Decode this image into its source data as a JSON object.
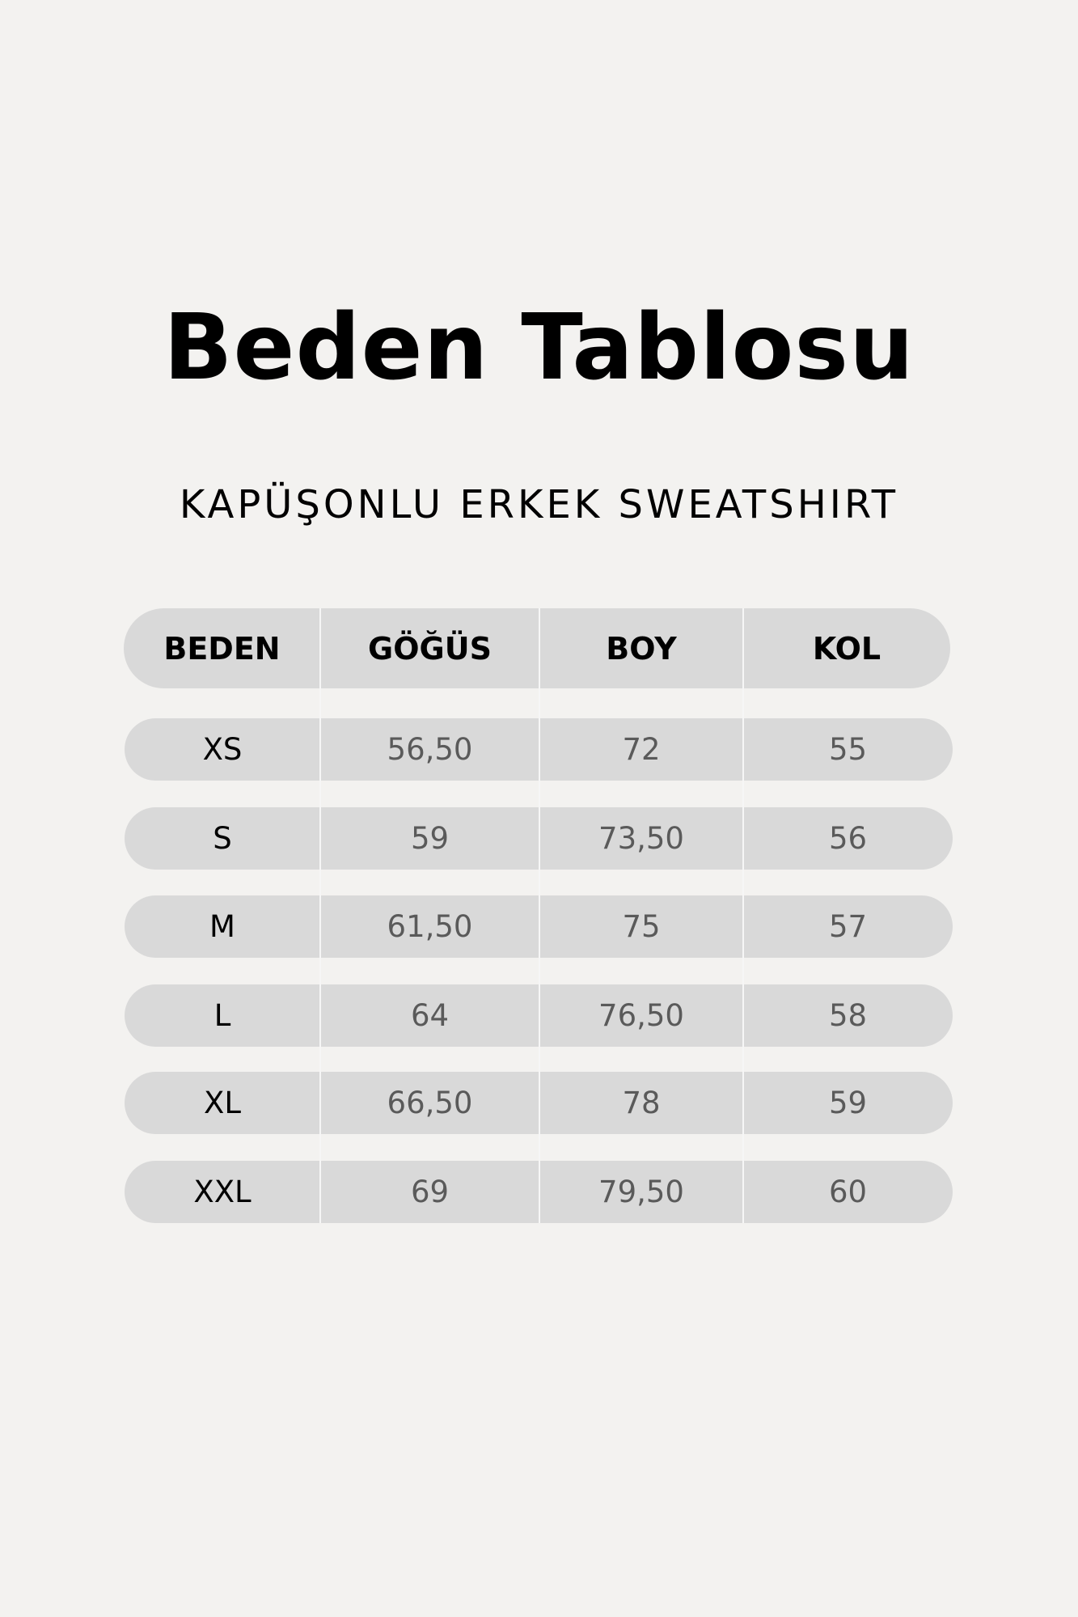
{
  "title": "Beden Tablosu",
  "subtitle": "KAPÜŞONLU ERKEK SWEATSHIRT",
  "table": {
    "headers": [
      "BEDEN",
      "GÖĞÜS",
      "BOY",
      "KOL"
    ],
    "rows": [
      [
        "XS",
        "56,50",
        "72",
        "55"
      ],
      [
        "S",
        "59",
        "73,50",
        "56"
      ],
      [
        "M",
        "61,50",
        "75",
        "57"
      ],
      [
        "L",
        "64",
        "76,50",
        "58"
      ],
      [
        "XL",
        "66,50",
        "78",
        "59"
      ],
      [
        "XXL",
        "69",
        "79,50",
        "60"
      ]
    ]
  },
  "colors": {
    "background": "#f3f2f0",
    "row_fill": "#d9d9d9",
    "value_text": "#5a5a5a"
  }
}
